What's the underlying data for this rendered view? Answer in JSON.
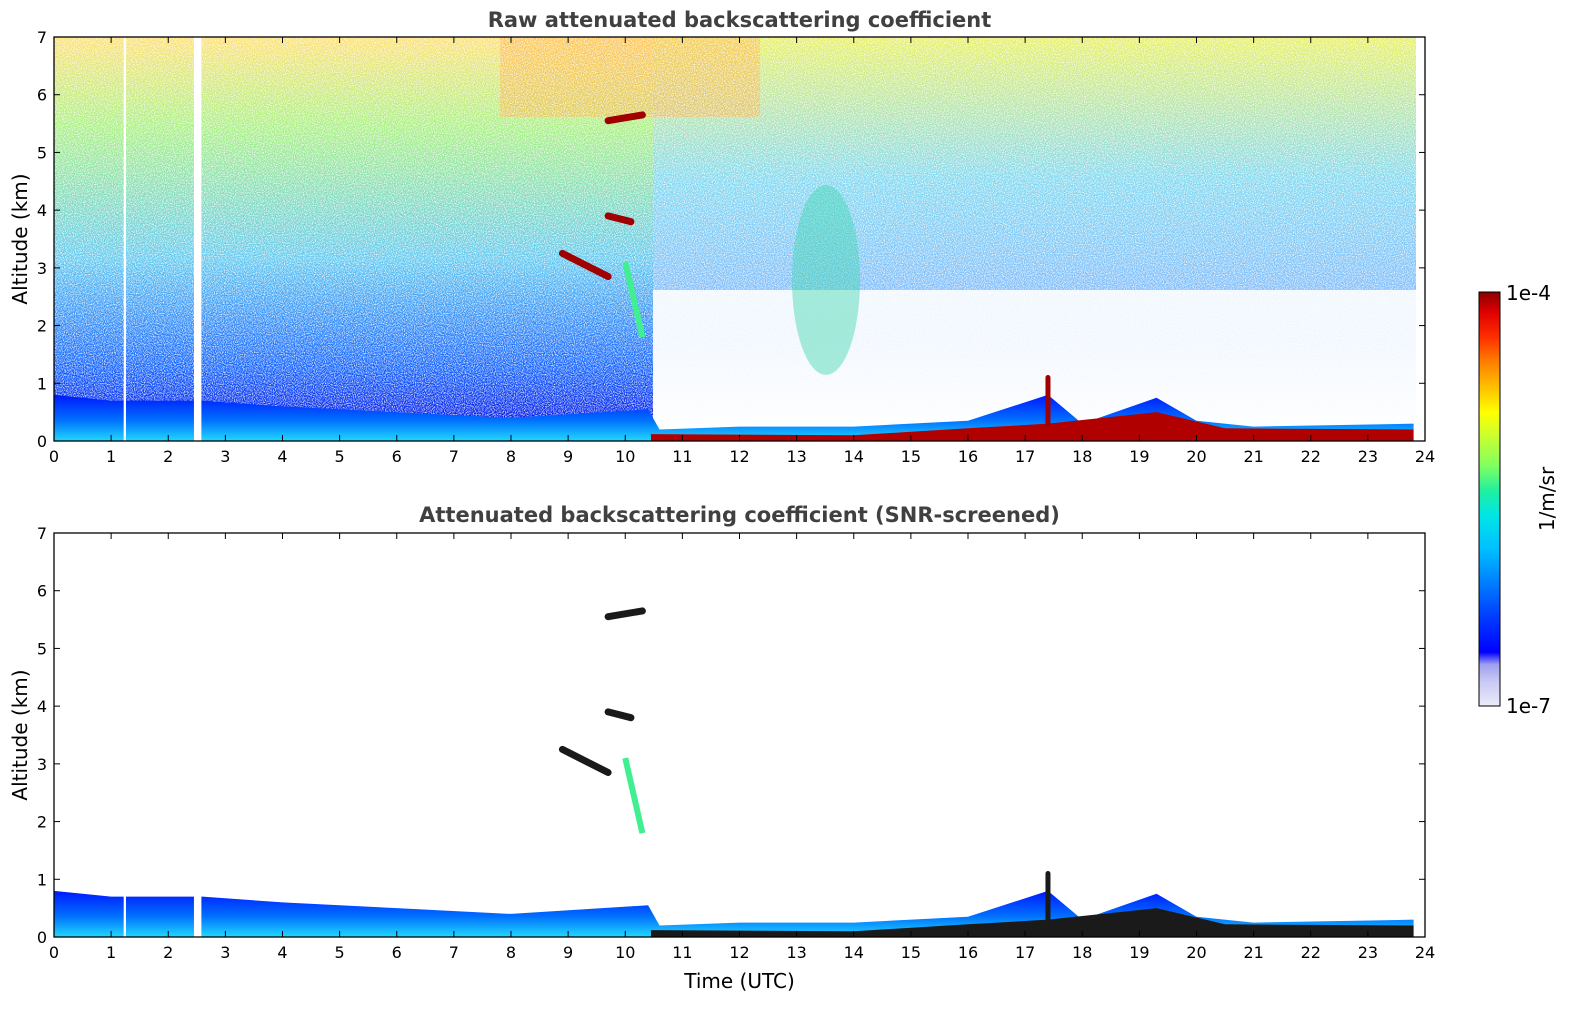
{
  "chart_data": [
    {
      "type": "heatmap",
      "title": "Raw attenuated backscattering coefficient",
      "xlabel": "",
      "ylabel": "Altitude (km)",
      "xlim": [
        0,
        24
      ],
      "ylim": [
        0,
        7
      ],
      "xticks": [
        "0",
        "1",
        "2",
        "3",
        "4",
        "5",
        "6",
        "7",
        "8",
        "9",
        "10",
        "11",
        "12",
        "13",
        "14",
        "15",
        "16",
        "17",
        "18",
        "19",
        "20",
        "21",
        "22",
        "23",
        "24"
      ],
      "yticks": [
        "0",
        "1",
        "2",
        "3",
        "4",
        "5",
        "6",
        "7"
      ],
      "data_gaps_hours": [
        [
          1.22,
          1.26
        ],
        [
          2.45,
          2.58
        ]
      ],
      "boundary_layer_top_km": {
        "hours": [
          0,
          1,
          2.4,
          2.6,
          4,
          6,
          8,
          10.4,
          10.6,
          12,
          14,
          16,
          17.4,
          18,
          19.3,
          20,
          21,
          23.8
        ],
        "km": [
          0.8,
          0.7,
          0.7,
          0.7,
          0.6,
          0.5,
          0.4,
          0.55,
          0.2,
          0.25,
          0.25,
          0.35,
          0.8,
          0.3,
          0.75,
          0.35,
          0.25,
          0.3
        ]
      },
      "features": [
        {
          "name": "aerosol-layer",
          "hours": [
            8.9,
            9.7
          ],
          "km": [
            3.25,
            2.85
          ]
        },
        {
          "name": "cloud-5.5km",
          "hours": [
            9.7,
            10.3
          ],
          "km": [
            5.55,
            5.65
          ]
        },
        {
          "name": "cloud-3.9km",
          "hours": [
            9.7,
            10.1
          ],
          "km": [
            3.9,
            3.8
          ]
        },
        {
          "name": "plume-17.4",
          "hours": [
            17.4,
            17.4
          ],
          "km": [
            0.3,
            1.1
          ]
        }
      ]
    },
    {
      "type": "heatmap",
      "title": "Attenuated backscattering coefficient (SNR-screened)",
      "xlabel": "Time (UTC)",
      "ylabel": "Altitude (km)",
      "xlim": [
        0,
        24
      ],
      "ylim": [
        0,
        7
      ],
      "xticks": [
        "0",
        "1",
        "2",
        "3",
        "4",
        "5",
        "6",
        "7",
        "8",
        "9",
        "10",
        "11",
        "12",
        "13",
        "14",
        "15",
        "16",
        "17",
        "18",
        "19",
        "20",
        "21",
        "22",
        "23",
        "24"
      ],
      "yticks": [
        "0",
        "1",
        "2",
        "3",
        "4",
        "5",
        "6",
        "7"
      ]
    }
  ],
  "colorbar": {
    "max_label": "1e-4",
    "min_label": "1e-7",
    "units": "1/m/sr",
    "colors": [
      "#ebebfa",
      "#c8c8f5",
      "#a0a0f0",
      "#0000ff",
      "#0040ff",
      "#0080ff",
      "#00c0ff",
      "#00e6e6",
      "#20f0a0",
      "#80ff60",
      "#c8ff30",
      "#ffff00",
      "#ffc000",
      "#ff8000",
      "#ff3000",
      "#e00000",
      "#8b0000"
    ]
  }
}
